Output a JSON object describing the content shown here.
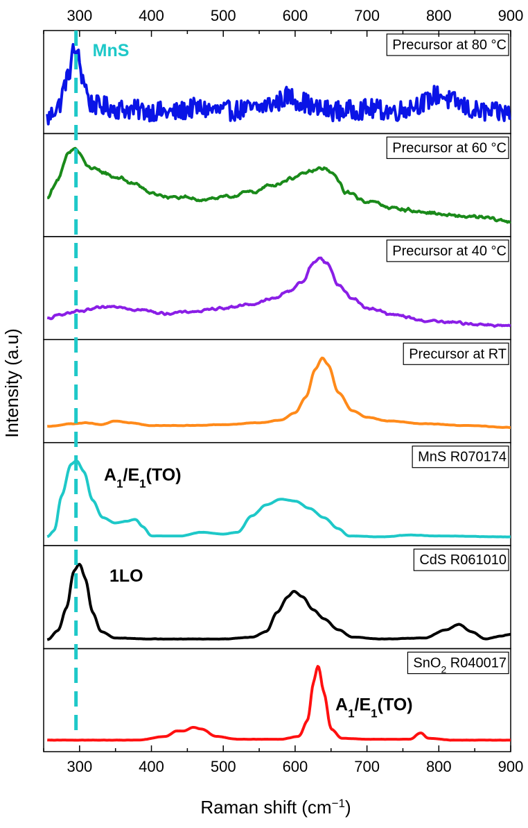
{
  "chart_data": {
    "type": "line",
    "layout": "stacked-panels",
    "xlabel": "Raman shift (cm",
    "xlabel_sup": "−1",
    "xlabel_close": ")",
    "ylabel": "Intensity (a.u)",
    "xlim": [
      250,
      900
    ],
    "xticks": [
      300,
      400,
      500,
      600,
      700,
      800,
      900
    ],
    "xticks_on_top": true,
    "reference_line": {
      "x": 295,
      "label": "MnS",
      "color": "#1ec8c8",
      "style": "dashed"
    },
    "panels": [
      {
        "name": "Precursor at 80 °C",
        "color": "#0a14e6",
        "noise": 0.22,
        "smooth": 1,
        "baseline": 0.12,
        "points": [
          [
            255,
            0.12
          ],
          [
            270,
            0.25
          ],
          [
            283,
            0.55
          ],
          [
            292,
            0.85
          ],
          [
            298,
            0.78
          ],
          [
            305,
            0.55
          ],
          [
            315,
            0.28
          ],
          [
            330,
            0.25
          ],
          [
            360,
            0.22
          ],
          [
            400,
            0.2
          ],
          [
            430,
            0.18
          ],
          [
            460,
            0.23
          ],
          [
            500,
            0.2
          ],
          [
            540,
            0.22
          ],
          [
            570,
            0.28
          ],
          [
            590,
            0.36
          ],
          [
            610,
            0.3
          ],
          [
            630,
            0.22
          ],
          [
            660,
            0.2
          ],
          [
            700,
            0.22
          ],
          [
            740,
            0.2
          ],
          [
            775,
            0.28
          ],
          [
            800,
            0.38
          ],
          [
            820,
            0.3
          ],
          [
            850,
            0.2
          ],
          [
            880,
            0.18
          ],
          [
            900,
            0.18
          ]
        ]
      },
      {
        "name": "Precursor at 60 °C",
        "color": "#1a8a1a",
        "noise": 0.06,
        "smooth": 2,
        "baseline": 0.12,
        "points": [
          [
            255,
            0.38
          ],
          [
            270,
            0.58
          ],
          [
            285,
            0.86
          ],
          [
            293,
            0.92
          ],
          [
            300,
            0.86
          ],
          [
            310,
            0.72
          ],
          [
            330,
            0.66
          ],
          [
            350,
            0.6
          ],
          [
            380,
            0.52
          ],
          [
            400,
            0.42
          ],
          [
            430,
            0.38
          ],
          [
            470,
            0.36
          ],
          [
            500,
            0.38
          ],
          [
            540,
            0.44
          ],
          [
            570,
            0.52
          ],
          [
            600,
            0.6
          ],
          [
            620,
            0.66
          ],
          [
            640,
            0.7
          ],
          [
            655,
            0.62
          ],
          [
            670,
            0.44
          ],
          [
            700,
            0.34
          ],
          [
            740,
            0.26
          ],
          [
            780,
            0.22
          ],
          [
            820,
            0.18
          ],
          [
            860,
            0.16
          ],
          [
            900,
            0.12
          ]
        ]
      },
      {
        "name": "Precursor at 40 °C",
        "color": "#8a1ee6",
        "noise": 0.04,
        "smooth": 2,
        "baseline": 0.1,
        "points": [
          [
            255,
            0.18
          ],
          [
            280,
            0.24
          ],
          [
            300,
            0.26
          ],
          [
            330,
            0.3
          ],
          [
            350,
            0.32
          ],
          [
            380,
            0.28
          ],
          [
            420,
            0.24
          ],
          [
            460,
            0.26
          ],
          [
            500,
            0.3
          ],
          [
            540,
            0.34
          ],
          [
            570,
            0.4
          ],
          [
            590,
            0.48
          ],
          [
            610,
            0.58
          ],
          [
            625,
            0.78
          ],
          [
            633,
            0.85
          ],
          [
            645,
            0.78
          ],
          [
            660,
            0.55
          ],
          [
            680,
            0.4
          ],
          [
            700,
            0.3
          ],
          [
            740,
            0.22
          ],
          [
            780,
            0.16
          ],
          [
            820,
            0.14
          ],
          [
            860,
            0.12
          ],
          [
            900,
            0.1
          ]
        ]
      },
      {
        "name": "Precursor at RT",
        "color": "#ff8a1a",
        "noise": 0.006,
        "smooth": 2,
        "baseline": 0.12,
        "points": [
          [
            255,
            0.13
          ],
          [
            290,
            0.16
          ],
          [
            310,
            0.17
          ],
          [
            330,
            0.15
          ],
          [
            350,
            0.19
          ],
          [
            370,
            0.17
          ],
          [
            400,
            0.14
          ],
          [
            450,
            0.14
          ],
          [
            500,
            0.15
          ],
          [
            550,
            0.17
          ],
          [
            580,
            0.2
          ],
          [
            600,
            0.28
          ],
          [
            615,
            0.45
          ],
          [
            628,
            0.75
          ],
          [
            638,
            0.88
          ],
          [
            646,
            0.8
          ],
          [
            660,
            0.5
          ],
          [
            680,
            0.3
          ],
          [
            700,
            0.23
          ],
          [
            730,
            0.19
          ],
          [
            780,
            0.16
          ],
          [
            840,
            0.14
          ],
          [
            900,
            0.12
          ]
        ]
      },
      {
        "name": "MnS  R070174",
        "color": "#1ec8c8",
        "noise": 0.004,
        "smooth": 2,
        "baseline": 0.05,
        "points": [
          [
            255,
            0.05
          ],
          [
            265,
            0.12
          ],
          [
            275,
            0.5
          ],
          [
            288,
            0.84
          ],
          [
            296,
            0.88
          ],
          [
            306,
            0.76
          ],
          [
            318,
            0.45
          ],
          [
            332,
            0.26
          ],
          [
            350,
            0.2
          ],
          [
            365,
            0.22
          ],
          [
            378,
            0.24
          ],
          [
            388,
            0.16
          ],
          [
            400,
            0.06
          ],
          [
            440,
            0.06
          ],
          [
            470,
            0.1
          ],
          [
            500,
            0.08
          ],
          [
            520,
            0.1
          ],
          [
            540,
            0.28
          ],
          [
            560,
            0.4
          ],
          [
            580,
            0.46
          ],
          [
            600,
            0.44
          ],
          [
            620,
            0.36
          ],
          [
            640,
            0.26
          ],
          [
            660,
            0.14
          ],
          [
            675,
            0.06
          ],
          [
            720,
            0.05
          ],
          [
            760,
            0.07
          ],
          [
            800,
            0.06
          ],
          [
            900,
            0.05
          ]
        ]
      },
      {
        "name": "CdS  R061010",
        "color": "#000000",
        "noise": 0.006,
        "smooth": 2,
        "baseline": 0.05,
        "points": [
          [
            255,
            0.05
          ],
          [
            270,
            0.15
          ],
          [
            282,
            0.4
          ],
          [
            292,
            0.8
          ],
          [
            300,
            0.88
          ],
          [
            308,
            0.72
          ],
          [
            318,
            0.35
          ],
          [
            330,
            0.14
          ],
          [
            350,
            0.07
          ],
          [
            400,
            0.06
          ],
          [
            450,
            0.06
          ],
          [
            500,
            0.06
          ],
          [
            540,
            0.08
          ],
          [
            560,
            0.14
          ],
          [
            575,
            0.35
          ],
          [
            590,
            0.52
          ],
          [
            598,
            0.58
          ],
          [
            610,
            0.52
          ],
          [
            625,
            0.38
          ],
          [
            640,
            0.28
          ],
          [
            660,
            0.16
          ],
          [
            680,
            0.08
          ],
          [
            720,
            0.06
          ],
          [
            780,
            0.07
          ],
          [
            810,
            0.16
          ],
          [
            828,
            0.22
          ],
          [
            845,
            0.14
          ],
          [
            865,
            0.06
          ],
          [
            885,
            0.09
          ],
          [
            900,
            0.11
          ]
        ]
      },
      {
        "name": "SnO",
        "name_sub": "2",
        "name_suffix": "  R040017",
        "color": "#ff1010",
        "noise": 0.003,
        "smooth": 2,
        "baseline": 0.08,
        "points": [
          [
            255,
            0.08
          ],
          [
            300,
            0.08
          ],
          [
            380,
            0.08
          ],
          [
            420,
            0.12
          ],
          [
            435,
            0.18
          ],
          [
            445,
            0.18
          ],
          [
            458,
            0.22
          ],
          [
            470,
            0.2
          ],
          [
            490,
            0.12
          ],
          [
            520,
            0.09
          ],
          [
            580,
            0.09
          ],
          [
            605,
            0.12
          ],
          [
            618,
            0.3
          ],
          [
            625,
            0.7
          ],
          [
            632,
            0.9
          ],
          [
            640,
            0.6
          ],
          [
            650,
            0.2
          ],
          [
            665,
            0.1
          ],
          [
            700,
            0.09
          ],
          [
            760,
            0.09
          ],
          [
            775,
            0.16
          ],
          [
            785,
            0.1
          ],
          [
            820,
            0.08
          ],
          [
            900,
            0.08
          ]
        ]
      }
    ],
    "annotations": [
      {
        "panel": 4,
        "main": "A",
        "sub": "1",
        "mid": "/E",
        "sub2": "1",
        "tail": "(TO)"
      },
      {
        "panel": 5,
        "main": "1LO"
      },
      {
        "panel": 6,
        "main": "A",
        "sub": "1",
        "mid": "/E",
        "sub2": "1",
        "tail": "(TO)"
      }
    ]
  }
}
